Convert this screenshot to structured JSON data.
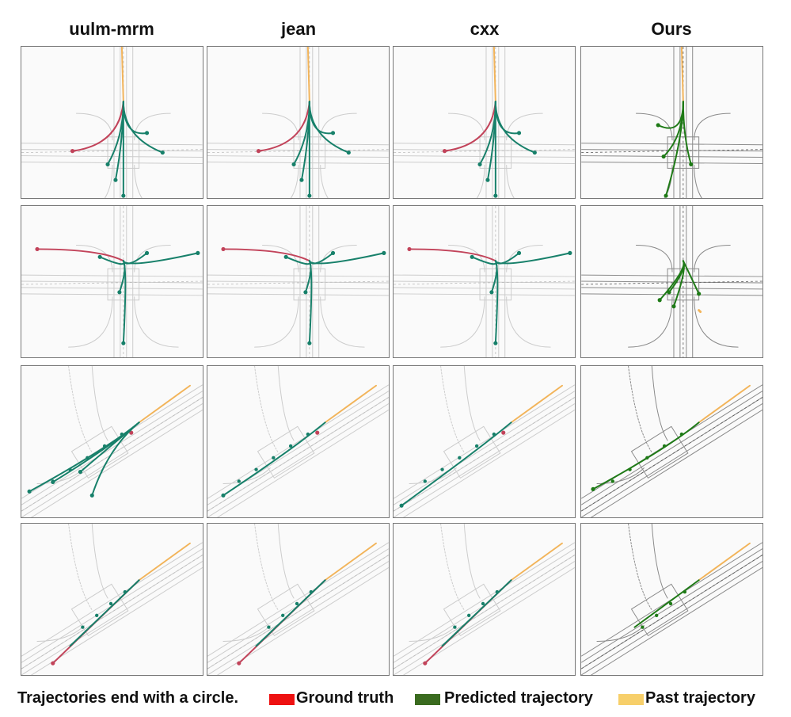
{
  "columns": [
    "uulm-mrm",
    "jean",
    "cxx",
    "Ours"
  ],
  "legend": {
    "note": "Trajectories end with a circle.",
    "items": [
      {
        "label": "Ground truth",
        "color": "#ee1111"
      },
      {
        "label": "Predicted trajectory",
        "color": "#3a6b1f"
      },
      {
        "label": "Past trajectory",
        "color": "#f7cf6a"
      }
    ]
  },
  "colors": {
    "ground_truth_line": "#c2435a",
    "baseline_prediction": "#17806a",
    "ours_prediction": "#1e7a16",
    "past_trajectory": "#f2b45a",
    "lane_light": "#cccccc",
    "lane_dark": "#8a8a8a"
  },
  "rows": [
    {
      "scene": "intersection-1"
    },
    {
      "scene": "intersection-2"
    },
    {
      "scene": "diagonal-road-1"
    },
    {
      "scene": "diagonal-road-2"
    }
  ]
}
